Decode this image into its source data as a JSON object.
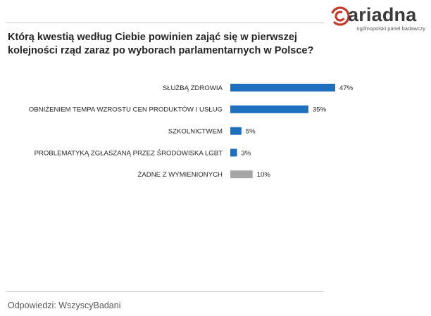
{
  "brand": {
    "logo_text": "ariadna",
    "tagline": "ogólnopolski panel badawczy",
    "accent_color": "#c0392b"
  },
  "question": "Którą kwestią według Ciebie powinien zająć się w pierwszej kolejności rząd zaraz po wyborach parlamentarnych w Polsce?",
  "footer": {
    "answers_label": "Odpowiedzi: WszyscyBadani"
  },
  "chart_data": {
    "type": "bar",
    "orientation": "horizontal",
    "categories": [
      "SŁUŻBĄ ZDROWIA",
      "OBNIŻENIEM TEMPA WZROSTU CEN PRODUKTÓW I USŁUG",
      "SZKOLNICTWEM",
      "PROBLEMATYKĄ ZGŁASZANĄ PRZEZ ŚRODOWISKA LGBT",
      "ŻADNE Z WYMIENIONYCH"
    ],
    "values": [
      47,
      35,
      5,
      3,
      10
    ],
    "value_labels": [
      "47%",
      "35%",
      "5%",
      "3%",
      "10%"
    ],
    "unit": "%",
    "bar_colors": [
      "#1f6fbf",
      "#1f6fbf",
      "#1f6fbf",
      "#1f6fbf",
      "#a6a6a6"
    ],
    "xlim": [
      0,
      47
    ],
    "grid": false,
    "legend": "none"
  }
}
